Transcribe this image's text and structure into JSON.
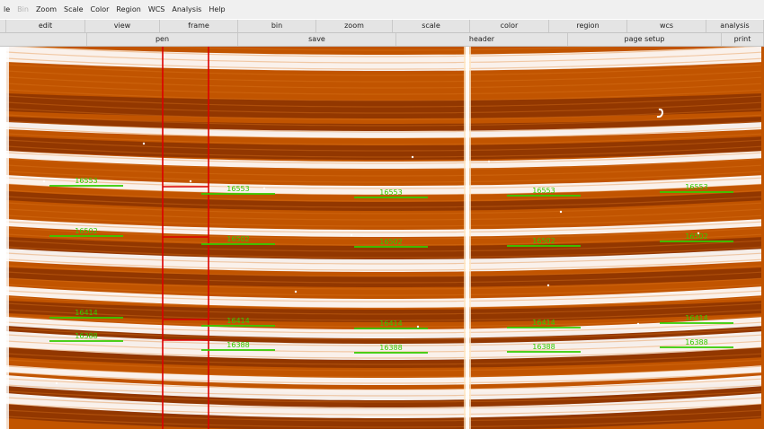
{
  "menubar": {
    "items": [
      {
        "label": "le",
        "disabled": false
      },
      {
        "label": "Bin",
        "disabled": true
      },
      {
        "label": "Zoom",
        "disabled": false
      },
      {
        "label": "Scale",
        "disabled": false
      },
      {
        "label": "Color",
        "disabled": false
      },
      {
        "label": "Region",
        "disabled": false
      },
      {
        "label": "WCS",
        "disabled": false
      },
      {
        "label": "Analysis",
        "disabled": false
      },
      {
        "label": "Help",
        "disabled": false
      }
    ]
  },
  "buttonbar_main": [
    "edit",
    "view",
    "frame",
    "bin",
    "zoom",
    "scale",
    "color",
    "region",
    "wcs",
    "analysis"
  ],
  "buttonbar_sub": [
    "pen",
    "save",
    "header",
    "page setup",
    "print"
  ],
  "image": {
    "region_labels": [
      {
        "row": 1,
        "labels": [
          "16553",
          "16553",
          "16553",
          "16553",
          "16553"
        ]
      },
      {
        "row": 2,
        "labels": [
          "16502",
          "16502",
          "16502",
          "16502",
          "16502"
        ]
      },
      {
        "row": 3,
        "labels": [
          "16414",
          "16414",
          "16414",
          "16414",
          "16414"
        ]
      },
      {
        "row": 4,
        "labels": [
          "16388",
          "16388",
          "16388",
          "16388",
          "16388"
        ]
      }
    ],
    "colors": {
      "background": "#c15400",
      "dark_band": "#8a3300",
      "bright_band": "#ffffff",
      "region_line": "#33cc00",
      "marker_line": "#dd0000"
    }
  }
}
